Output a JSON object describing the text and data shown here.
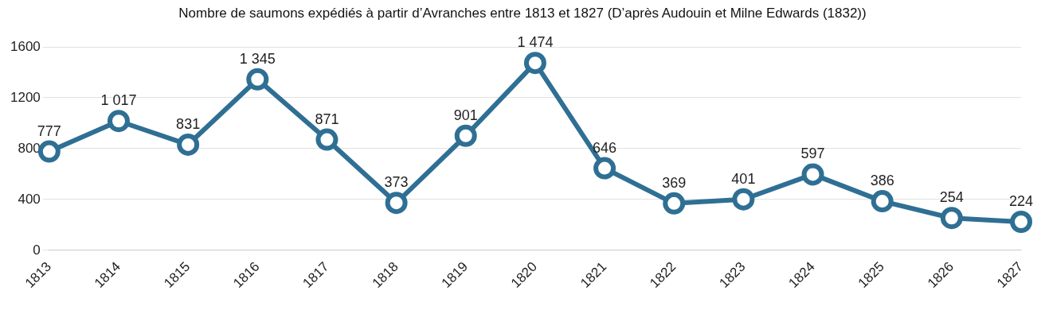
{
  "chart_data": {
    "type": "line",
    "title": "Nombre de saumons expédiés à partir d’Avranches entre 1813 et 1827 (D’après Audouin et Milne Edwards (1832))",
    "categories": [
      "1813",
      "1814",
      "1815",
      "1816",
      "1817",
      "1818",
      "1819",
      "1820",
      "1821",
      "1822",
      "1823",
      "1824",
      "1825",
      "1826",
      "1827"
    ],
    "series": [
      {
        "color": "#2f6f94",
        "values": [
          777,
          1017,
          831,
          1345,
          871,
          373,
          901,
          1474,
          646,
          369,
          401,
          597,
          386,
          254,
          224
        ],
        "value_labels": [
          "777",
          "1 017",
          "831",
          "1 345",
          "871",
          "373",
          "901",
          "1 474",
          "646",
          "369",
          "401",
          "597",
          "386",
          "254",
          "224"
        ]
      }
    ],
    "ylim": [
      0,
      1600
    ],
    "yticks": [
      0,
      400,
      800,
      1200,
      1600
    ],
    "grid": "y",
    "legend": false,
    "marker": "circle",
    "line_style": "solid"
  }
}
